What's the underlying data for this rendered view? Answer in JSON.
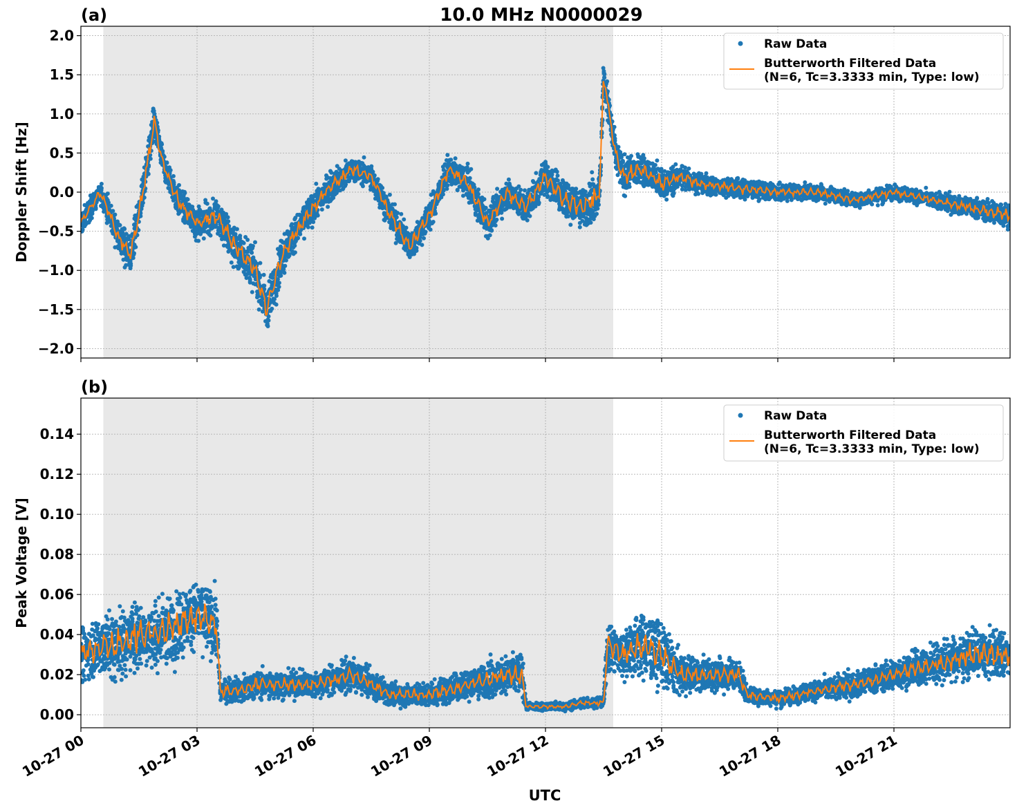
{
  "figure": {
    "title": "10.0 MHz N0000029",
    "xlabel": "UTC"
  },
  "colors": {
    "raw": "#1f77b4",
    "filtered": "#ff7f0e",
    "shade": "#e8e8e8",
    "grid": "#b0b0b0"
  },
  "chart_data": [
    {
      "type": "scatter",
      "panel_label": "(a)",
      "title": "10.0 MHz N0000029",
      "xlabel": "",
      "ylabel": "Doppler Shift [Hz]",
      "x_unit": "hours UTC on 10-27",
      "xlim": [
        0,
        24
      ],
      "ylim": [
        -2.12,
        2.12
      ],
      "yticks": [
        -2.0,
        -1.5,
        -1.0,
        -0.5,
        0.0,
        0.5,
        1.0,
        1.5,
        2.0
      ],
      "ytick_labels": [
        "−2.0",
        "−1.5",
        "−1.0",
        "−0.5",
        "0.0",
        "0.5",
        "1.0",
        "1.5",
        "2.0"
      ],
      "grid": true,
      "legend": "top-right",
      "shaded_interval": [
        0.58,
        13.75
      ],
      "series": [
        {
          "name": "Raw Data",
          "type": "scatter",
          "x": [
            0.0,
            0.5,
            1.0,
            1.3,
            1.6,
            1.9,
            2.1,
            2.5,
            3.0,
            3.5,
            4.0,
            4.5,
            4.8,
            5.2,
            5.7,
            6.3,
            7.0,
            7.5,
            8.0,
            8.5,
            9.0,
            9.5,
            10.0,
            10.5,
            11.0,
            11.5,
            12.0,
            12.5,
            13.0,
            13.4,
            13.5,
            13.8,
            14.0,
            14.5,
            15.0,
            15.5,
            16.0,
            17.0,
            18.0,
            19.0,
            20.0,
            21.0,
            22.0,
            23.0,
            24.0
          ],
          "y": [
            -0.4,
            0.0,
            -0.6,
            -0.8,
            0.0,
            0.9,
            0.4,
            -0.1,
            -0.4,
            -0.3,
            -0.7,
            -1.0,
            -1.5,
            -0.8,
            -0.4,
            0.0,
            0.3,
            0.2,
            -0.3,
            -0.7,
            -0.3,
            0.3,
            0.1,
            -0.4,
            0.0,
            -0.2,
            0.2,
            -0.1,
            -0.2,
            0.0,
            1.5,
            0.5,
            0.2,
            0.3,
            0.1,
            0.2,
            0.1,
            0.05,
            0.0,
            0.0,
            -0.1,
            0.0,
            -0.1,
            -0.2,
            -0.3
          ],
          "spread": [
            0.25,
            0.2,
            0.3,
            0.4,
            0.3,
            0.35,
            0.25,
            0.3,
            0.3,
            0.35,
            0.4,
            0.45,
            0.4,
            0.4,
            0.3,
            0.3,
            0.25,
            0.25,
            0.3,
            0.3,
            0.3,
            0.25,
            0.3,
            0.3,
            0.3,
            0.35,
            0.35,
            0.4,
            0.4,
            0.4,
            0.35,
            0.35,
            0.35,
            0.3,
            0.3,
            0.25,
            0.2,
            0.2,
            0.15,
            0.15,
            0.15,
            0.15,
            0.15,
            0.2,
            0.25
          ]
        },
        {
          "name": "Butterworth Filtered Data\n(N=6, Tc=3.3333 min, Type: low)",
          "type": "line",
          "x": [
            0.0,
            0.5,
            1.0,
            1.3,
            1.6,
            1.9,
            2.1,
            2.5,
            3.0,
            3.5,
            4.0,
            4.5,
            4.8,
            5.2,
            5.7,
            6.3,
            7.0,
            7.5,
            8.0,
            8.5,
            9.0,
            9.5,
            10.0,
            10.5,
            11.0,
            11.5,
            12.0,
            12.5,
            13.0,
            13.4,
            13.5,
            13.8,
            14.0,
            14.5,
            15.0,
            15.5,
            16.0,
            17.0,
            18.0,
            19.0,
            20.0,
            21.0,
            22.0,
            23.0,
            24.0
          ],
          "y": [
            -0.4,
            0.0,
            -0.6,
            -0.8,
            0.0,
            0.9,
            0.4,
            -0.1,
            -0.4,
            -0.3,
            -0.7,
            -1.0,
            -1.5,
            -0.8,
            -0.4,
            0.0,
            0.3,
            0.2,
            -0.3,
            -0.7,
            -0.3,
            0.3,
            0.1,
            -0.4,
            0.0,
            -0.2,
            0.2,
            -0.1,
            -0.2,
            0.0,
            1.5,
            0.5,
            0.2,
            0.3,
            0.1,
            0.2,
            0.1,
            0.05,
            0.0,
            0.0,
            -0.1,
            0.0,
            -0.1,
            -0.2,
            -0.3
          ]
        }
      ]
    },
    {
      "type": "scatter",
      "panel_label": "(b)",
      "title": "",
      "xlabel": "UTC",
      "ylabel": "Peak Voltage [V]",
      "x_unit": "hours UTC on 10-27",
      "xlim": [
        0,
        24
      ],
      "ylim": [
        -0.0065,
        0.158
      ],
      "yticks": [
        0.0,
        0.02,
        0.04,
        0.06,
        0.08,
        0.1,
        0.12,
        0.14
      ],
      "ytick_labels": [
        "0.00",
        "0.02",
        "0.04",
        "0.06",
        "0.08",
        "0.10",
        "0.12",
        "0.14"
      ],
      "xticks": [
        0,
        3,
        6,
        9,
        12,
        15,
        18,
        21
      ],
      "xtick_labels": [
        "10-27 00",
        "10-27 03",
        "10-27 06",
        "10-27 09",
        "10-27 12",
        "10-27 15",
        "10-27 18",
        "10-27 21"
      ],
      "grid": true,
      "legend": "top-right",
      "shaded_interval": [
        0.58,
        13.75
      ],
      "series": [
        {
          "name": "Raw Data",
          "type": "scatter",
          "x": [
            0.0,
            0.6,
            1.0,
            1.5,
            2.0,
            2.5,
            3.0,
            3.5,
            3.6,
            4.0,
            4.5,
            5.0,
            6.0,
            7.0,
            8.0,
            9.0,
            10.0,
            11.0,
            11.4,
            11.5,
            12.0,
            12.5,
            13.0,
            13.5,
            13.6,
            14.0,
            14.5,
            15.0,
            15.5,
            16.0,
            17.0,
            17.2,
            18.0,
            19.0,
            20.0,
            21.0,
            22.0,
            23.0,
            24.0
          ],
          "y": [
            0.03,
            0.035,
            0.035,
            0.04,
            0.04,
            0.045,
            0.05,
            0.045,
            0.012,
            0.012,
            0.015,
            0.015,
            0.015,
            0.02,
            0.01,
            0.01,
            0.015,
            0.02,
            0.02,
            0.004,
            0.004,
            0.004,
            0.006,
            0.006,
            0.035,
            0.03,
            0.035,
            0.03,
            0.02,
            0.02,
            0.02,
            0.01,
            0.008,
            0.012,
            0.015,
            0.02,
            0.025,
            0.03,
            0.03
          ],
          "spread": [
            0.02,
            0.025,
            0.025,
            0.025,
            0.025,
            0.025,
            0.025,
            0.025,
            0.008,
            0.01,
            0.012,
            0.01,
            0.01,
            0.012,
            0.008,
            0.01,
            0.012,
            0.015,
            0.015,
            0.003,
            0.003,
            0.003,
            0.004,
            0.004,
            0.02,
            0.02,
            0.025,
            0.025,
            0.015,
            0.012,
            0.012,
            0.007,
            0.006,
            0.008,
            0.01,
            0.012,
            0.015,
            0.018,
            0.018
          ]
        },
        {
          "name": "Butterworth Filtered Data\n(N=6, Tc=3.3333 min, Type: low)",
          "type": "line",
          "x": [
            0.0,
            0.6,
            1.0,
            1.5,
            2.0,
            2.5,
            3.0,
            3.5,
            3.6,
            4.0,
            4.5,
            5.0,
            6.0,
            7.0,
            8.0,
            9.0,
            10.0,
            11.0,
            11.4,
            11.5,
            12.0,
            12.5,
            13.0,
            13.5,
            13.6,
            14.0,
            14.5,
            15.0,
            15.5,
            16.0,
            17.0,
            17.2,
            18.0,
            19.0,
            20.0,
            21.0,
            22.0,
            23.0,
            24.0
          ],
          "y": [
            0.03,
            0.035,
            0.035,
            0.04,
            0.04,
            0.045,
            0.05,
            0.045,
            0.012,
            0.012,
            0.015,
            0.015,
            0.015,
            0.02,
            0.01,
            0.01,
            0.015,
            0.02,
            0.02,
            0.004,
            0.004,
            0.004,
            0.006,
            0.006,
            0.035,
            0.03,
            0.035,
            0.03,
            0.02,
            0.02,
            0.02,
            0.01,
            0.008,
            0.012,
            0.015,
            0.02,
            0.025,
            0.03,
            0.03
          ]
        }
      ]
    }
  ]
}
